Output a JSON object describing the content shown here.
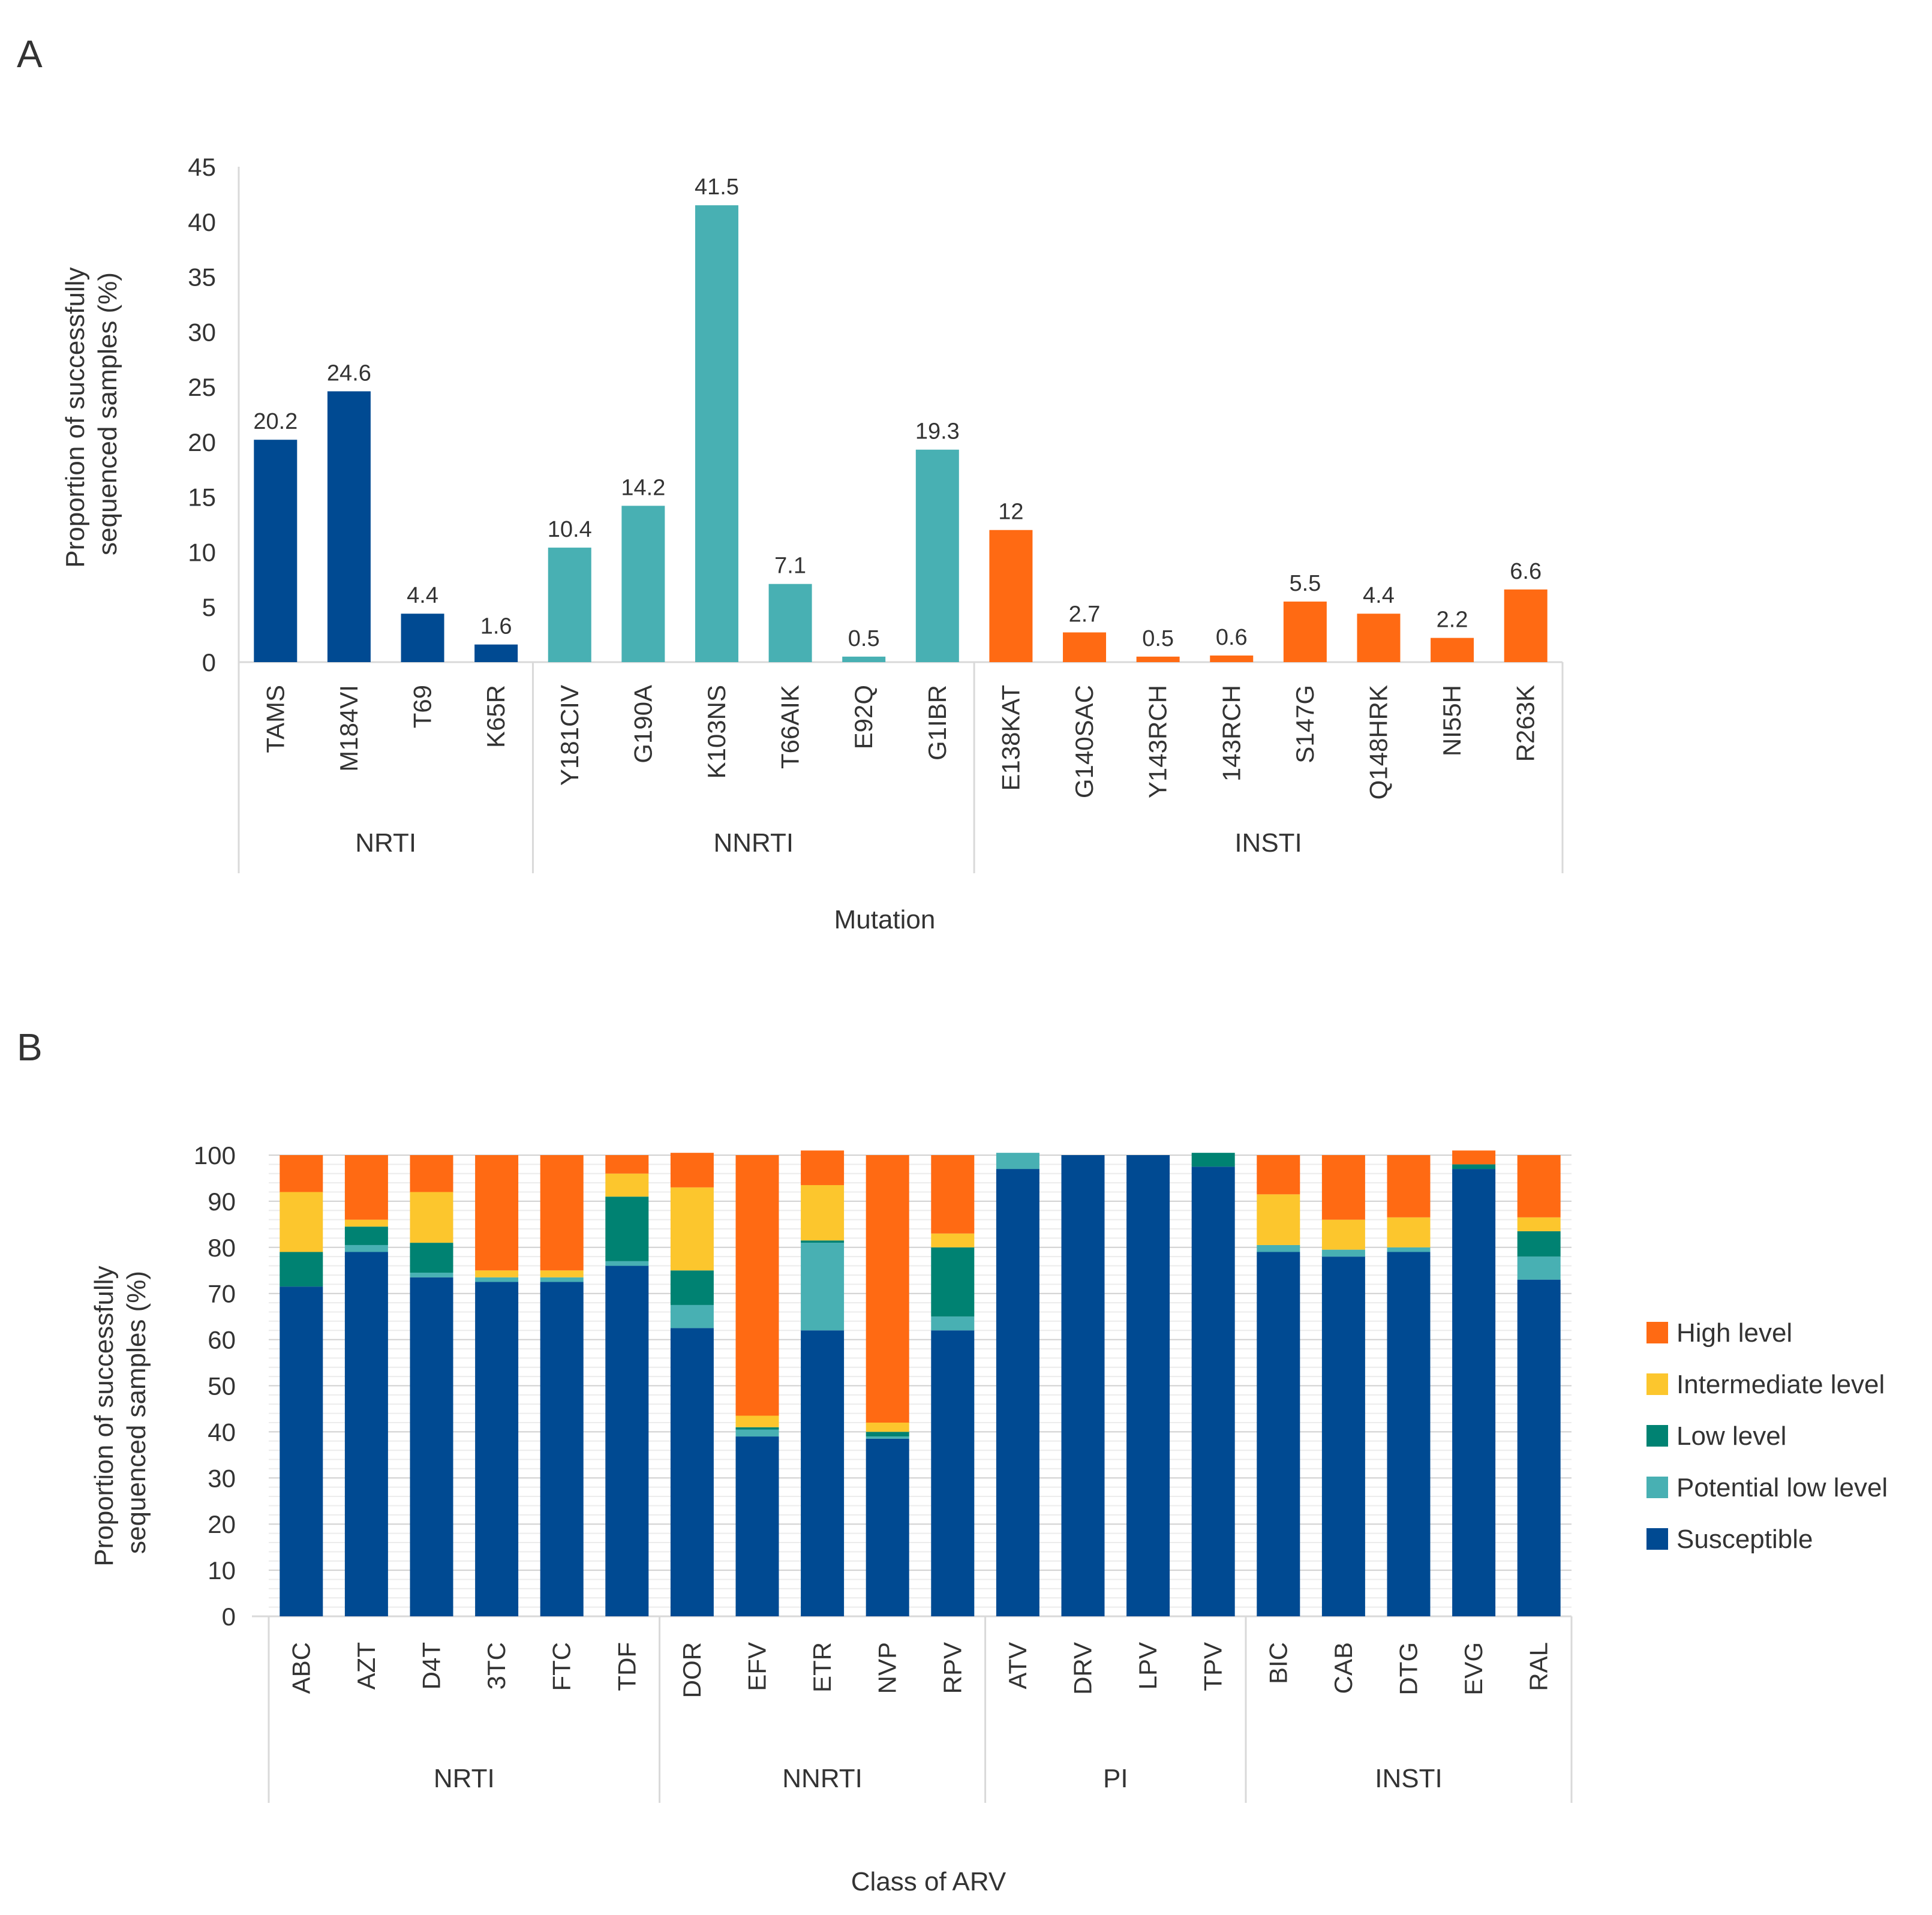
{
  "panels": [
    {
      "label": "A",
      "chart_data": {
        "type": "bar",
        "ylabel_lines": [
          "Proportion of successfully",
          "sequenced samples (%)"
        ],
        "xlabel": "Mutation",
        "ylim": [
          0,
          45
        ],
        "yticks": [
          0,
          5,
          10,
          15,
          20,
          25,
          30,
          35,
          40,
          45
        ],
        "categories": [
          "TAMS",
          "M184VI",
          "T69",
          "K65R",
          "Y181CIV",
          "G190A",
          "K103NS",
          "T66AIK",
          "E92Q",
          "G1IBR",
          "E138KAT",
          "G140SAC",
          "Y143RCH",
          "143RCH",
          "S147G",
          "Q148HRK",
          "NI55H",
          "R263K"
        ],
        "values": [
          20.2,
          24.6,
          4.4,
          1.6,
          10.4,
          14.2,
          41.5,
          7.1,
          0.5,
          19.3,
          12,
          2.7,
          0.5,
          0.6,
          5.5,
          4.4,
          2.2,
          6.6
        ],
        "value_labels": [
          "20.2",
          "24.6",
          "4.4",
          "1.6",
          "10.4",
          "14.2",
          "41.5",
          "7.1",
          "0.5",
          "19.3",
          "12",
          "2.7",
          "0.5",
          "0.6",
          "5.5",
          "4.4",
          "2.2",
          "6.6"
        ],
        "groups": [
          {
            "name": "NRTI",
            "count": 4,
            "color": "#004a92"
          },
          {
            "name": "NNRTI",
            "count": 6,
            "color": "#48b0b3"
          },
          {
            "name": "INSTI",
            "count": 8,
            "color": "#ff6a13"
          }
        ]
      }
    },
    {
      "label": "B",
      "chart_data": {
        "type": "bar",
        "stacked": true,
        "ylabel_lines": [
          "Proportion of successfully",
          "sequenced samples (%)"
        ],
        "xlabel": "Class of ARV",
        "ylim": [
          0,
          100
        ],
        "yticks": [
          0,
          10,
          20,
          30,
          40,
          50,
          60,
          70,
          80,
          90,
          100
        ],
        "grid": true,
        "categories": [
          "ABC",
          "AZT",
          "D4T",
          "3TC",
          "FTC",
          "TDF",
          "DOR",
          "EFV",
          "ETR",
          "NVP",
          "RPV",
          "ATV",
          "DRV",
          "LPV",
          "TPV",
          "BIC",
          "CAB",
          "DTG",
          "EVG",
          "RAL"
        ],
        "groups": [
          {
            "name": "NRTI",
            "count": 6
          },
          {
            "name": "NNRTI",
            "count": 5
          },
          {
            "name": "PI",
            "count": 4
          },
          {
            "name": "INSTI",
            "count": 5
          }
        ],
        "series": [
          {
            "name": "Susceptible",
            "color": "#004a92",
            "values": [
              71.5,
              79,
              73.5,
              72.5,
              72.5,
              76,
              62.5,
              39,
              62,
              38.5,
              62,
              97,
              100,
              100,
              97.5,
              79,
              78,
              79,
              97,
              73
            ]
          },
          {
            "name": "Potential low level",
            "color": "#48b0b3",
            "values": [
              0,
              1.5,
              1,
              1,
              1,
              1,
              5,
              1.5,
              19,
              0.5,
              3,
              3.5,
              0,
              0,
              0,
              1.5,
              1.5,
              1,
              0,
              5
            ]
          },
          {
            "name": "Low level",
            "color": "#008272",
            "values": [
              7.5,
              4,
              6.5,
              0,
              0,
              14,
              7.5,
              0.5,
              0.5,
              1,
              15,
              0,
              0,
              0,
              3,
              0,
              0,
              0,
              1,
              5.5
            ]
          },
          {
            "name": "Intermediate level",
            "color": "#fcc62d",
            "values": [
              13,
              1.5,
              11,
              1.5,
              1.5,
              5,
              18,
              2.5,
              12,
              2,
              3,
              0,
              0,
              0,
              0,
              11,
              6.5,
              6.5,
              0,
              3
            ]
          },
          {
            "name": "High level",
            "color": "#ff6a13",
            "values": [
              8,
              14,
              8,
              25,
              25,
              4,
              7.5,
              56.5,
              7.5,
              58,
              17,
              0,
              0,
              0,
              0,
              8.5,
              14,
              13.5,
              3,
              13.5
            ]
          }
        ],
        "legend": [
          "High level",
          "Intermediate level",
          "Low level",
          "Potential low level",
          "Susceptible"
        ]
      }
    }
  ]
}
